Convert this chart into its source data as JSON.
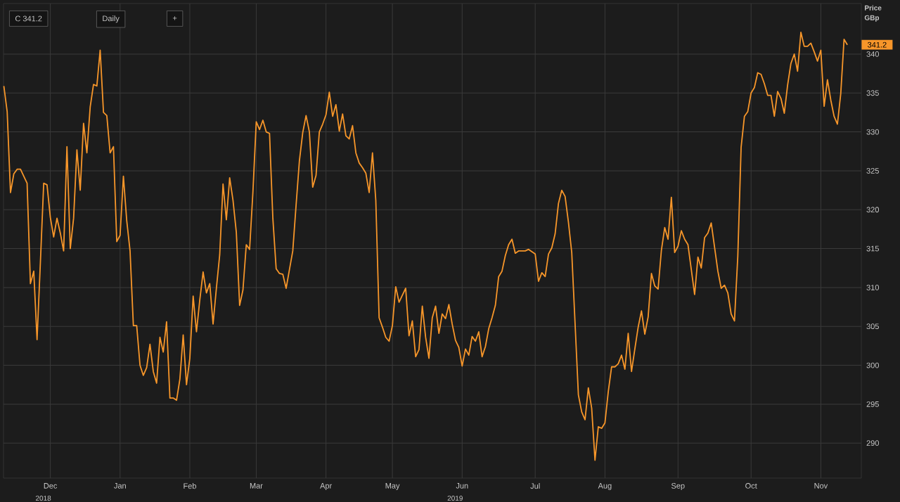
{
  "chart_data": {
    "type": "line",
    "ylabel": "Price GBp",
    "categories": [
      null,
      null,
      null,
      null,
      null,
      null,
      null,
      null,
      null,
      null,
      null,
      null,
      null,
      null,
      "Dec",
      null,
      null,
      null,
      null,
      null,
      null,
      null,
      null,
      null,
      null,
      null,
      null,
      null,
      null,
      null,
      null,
      null,
      null,
      null,
      null,
      "Jan",
      null,
      null,
      null,
      null,
      null,
      null,
      null,
      null,
      null,
      null,
      null,
      null,
      null,
      null,
      null,
      null,
      null,
      null,
      null,
      null,
      "Feb",
      null,
      null,
      null,
      null,
      null,
      null,
      null,
      null,
      null,
      null,
      null,
      null,
      null,
      null,
      null,
      null,
      null,
      null,
      null,
      "Mar",
      null,
      null,
      null,
      null,
      null,
      null,
      null,
      null,
      null,
      null,
      null,
      null,
      null,
      null,
      null,
      null,
      null,
      null,
      null,
      null,
      "Apr",
      null,
      null,
      null,
      null,
      null,
      null,
      null,
      null,
      null,
      null,
      null,
      null,
      null,
      null,
      null,
      null,
      null,
      null,
      null,
      "May",
      null,
      null,
      null,
      null,
      null,
      null,
      null,
      null,
      null,
      null,
      null,
      null,
      null,
      null,
      null,
      null,
      null,
      null,
      null,
      null,
      "Jun",
      null,
      null,
      null,
      null,
      null,
      null,
      null,
      null,
      null,
      null,
      null,
      null,
      null,
      null,
      null,
      null,
      null,
      null,
      null,
      null,
      null,
      "Jul",
      null,
      null,
      null,
      null,
      null,
      null,
      null,
      null,
      null,
      null,
      null,
      null,
      null,
      null,
      null,
      null,
      null,
      null,
      null,
      null,
      "Aug",
      null,
      null,
      null,
      null,
      null,
      null,
      null,
      null,
      null,
      null,
      null,
      null,
      null,
      null,
      null,
      null,
      null,
      null,
      null,
      null,
      null,
      "Sep",
      null,
      null,
      null,
      null,
      null,
      null,
      null,
      null,
      null,
      null,
      null,
      null,
      null,
      null,
      null,
      null,
      null,
      null,
      null,
      null,
      null,
      "Oct",
      null,
      null,
      null,
      null,
      null,
      null,
      null,
      null,
      null,
      null,
      null,
      null,
      null,
      null,
      null,
      null,
      null,
      null,
      null,
      null,
      "Nov",
      null,
      null,
      null,
      null,
      null,
      null,
      null,
      null
    ],
    "series": [
      {
        "color": "#f7962a",
        "values": [
          335.9,
          332.6,
          322.2,
          324.6,
          325.2,
          325.2,
          324.3,
          323.4,
          310.5,
          312.1,
          303.3,
          313.2,
          323.4,
          323.2,
          319,
          316.5,
          318.9,
          317,
          314.7,
          328.1,
          315,
          318.9,
          327.7,
          322.5,
          331.1,
          327.3,
          333.2,
          336.1,
          335.9,
          340.5,
          332.5,
          332.1,
          327.3,
          328.1,
          315.9,
          316.7,
          324.3,
          318.6,
          314.7,
          305.1,
          305.1,
          300,
          298.7,
          299.7,
          302.7,
          299.2,
          297.7,
          303.6,
          301.7,
          305.6,
          295.8,
          295.8,
          295.5,
          298.2,
          303.9,
          297.5,
          300.9,
          308.9,
          304.3,
          308.4,
          312,
          309.3,
          310.5,
          305.3,
          309.9,
          314.2,
          323.3,
          318.7,
          324.1,
          321.2,
          317.1,
          307.7,
          309.7,
          315.5,
          314.9,
          322.3,
          331.3,
          330.3,
          331.5,
          330,
          329.8,
          318.9,
          312.4,
          311.8,
          311.7,
          309.9,
          312.3,
          314.7,
          320.6,
          326.3,
          329.9,
          332.1,
          330,
          322.9,
          324.4,
          330,
          331,
          332.2,
          335.1,
          332,
          333.5,
          330.1,
          332.3,
          329.5,
          329.1,
          330.8,
          327.3,
          326,
          325.4,
          324.7,
          322.2,
          327.3,
          321.2,
          306.1,
          304.9,
          303.6,
          303.1,
          305.1,
          310.1,
          308.1,
          309,
          309.9,
          303.8,
          305.7,
          301.1,
          302,
          307.6,
          303.6,
          300.9,
          306.1,
          307.6,
          304.1,
          306.6,
          306,
          307.8,
          305.3,
          303.2,
          302.3,
          299.9,
          302.1,
          301.3,
          303.7,
          303.1,
          304.3,
          301.1,
          302.4,
          304.7,
          306.1,
          307.7,
          311.4,
          312.1,
          314.1,
          315.5,
          316.2,
          314.4,
          314.7,
          314.7,
          314.7,
          314.9,
          314.6,
          314.3,
          310.8,
          311.9,
          311.4,
          314.3,
          315.1,
          316.9,
          320.8,
          322.5,
          321.7,
          318.4,
          314.5,
          305.4,
          296.2,
          294,
          293,
          297.1,
          294.5,
          287.8,
          292.1,
          291.9,
          292.6,
          296.6,
          299.8,
          299.8,
          300.2,
          301.3,
          299.5,
          304.1,
          299.2,
          302.1,
          304.9,
          307,
          304,
          306.2,
          311.8,
          310.2,
          309.8,
          314.8,
          317.7,
          316.2,
          321.6,
          314.5,
          315.3,
          317.3,
          316.2,
          315.5,
          312.3,
          309.1,
          313.9,
          312.5,
          316.4,
          317,
          318.3,
          315.2,
          312.1,
          309.9,
          310.3,
          309.3,
          306.6,
          305.7,
          314,
          328,
          332,
          332.6,
          335,
          335.7,
          337.6,
          337.4,
          336.2,
          334.7,
          334.7,
          332,
          335.2,
          334.3,
          332.4,
          336,
          338.8,
          340,
          337.8,
          342.8,
          341,
          341,
          341.4,
          340.3,
          339.1,
          340.5,
          333.3,
          336.7,
          334.1,
          332,
          331,
          334.9,
          341.9,
          341.2
        ]
      }
    ],
    "ylim": [
      285.5,
      346.5
    ],
    "yticks": [
      290,
      295,
      300,
      305,
      310,
      315,
      320,
      325,
      330,
      335,
      340
    ],
    "grid": true,
    "marker": "none",
    "annotations": [
      "C 341.2",
      "Daily",
      "+",
      "2018",
      "2019",
      "341.2"
    ]
  }
}
